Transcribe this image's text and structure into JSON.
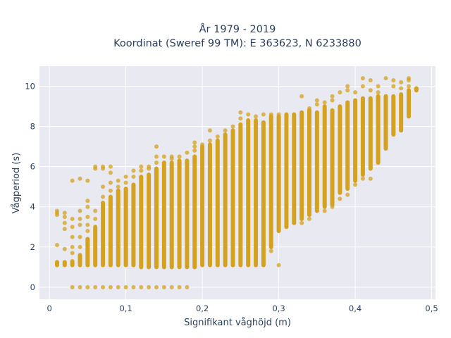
{
  "chart_data": {
    "type": "scatter",
    "title_line1": "År 1979 - 2019",
    "title_line2": "Koordinat (Sweref 99 TM): E 363623, N 6233880",
    "xlabel": "Signifikant våghöjd (m)",
    "ylabel": "Vågperiod (s)",
    "xlim": [
      -0.013,
      0.505
    ],
    "ylim": [
      -0.6,
      11.0
    ],
    "x_ticks": [
      0,
      0.1,
      0.2,
      0.3,
      0.4,
      0.5
    ],
    "x_tick_labels": [
      "0",
      "0,1",
      "0,2",
      "0,3",
      "0,4",
      "0,5"
    ],
    "y_ticks": [
      0,
      2,
      4,
      6,
      8,
      10
    ],
    "y_tick_labels": [
      "0",
      "2",
      "4",
      "6",
      "8",
      "10"
    ],
    "grid": true,
    "colors": {
      "marker": "#d4a21e",
      "plot_bg": "#e9e9f1",
      "grid": "#ffffff",
      "text": "#2a3f5f"
    },
    "series": [
      {
        "marker_size": 6,
        "columns": [
          {
            "x": 0.01,
            "ymin": 1.1,
            "ymax": 1.25,
            "out": [
              1.2,
              2.1,
              3.6,
              3.8,
              3.7
            ]
          },
          {
            "x": 0.02,
            "ymin": 1.1,
            "ymax": 1.25,
            "out": [
              1.2,
              1.9,
              2.9,
              3.2,
              3.5,
              3.7
            ]
          },
          {
            "x": 0.03,
            "ymin": 1.1,
            "ymax": 1.25,
            "out": [
              0,
              1.3,
              1.7,
              2.0,
              2.5,
              3.0,
              3.4,
              5.3
            ]
          },
          {
            "x": 0.04,
            "ymin": 1.1,
            "ymax": 1.6,
            "out": [
              0,
              2.0,
              2.5,
              3.1,
              3.4,
              3.8,
              5.4
            ]
          },
          {
            "x": 0.05,
            "ymin": 1.1,
            "ymax": 2.4,
            "out": [
              0,
              2.8,
              3.1,
              3.5,
              4.0,
              4.3,
              5.3
            ]
          },
          {
            "x": 0.06,
            "ymin": 1.1,
            "ymax": 3.0,
            "out": [
              0,
              3.4,
              3.8,
              5.9,
              6.0
            ]
          },
          {
            "x": 0.07,
            "ymin": 1.1,
            "ymax": 4.2,
            "out": [
              0,
              4.5,
              5.0,
              5.9,
              6.0
            ]
          },
          {
            "x": 0.08,
            "ymin": 1.1,
            "ymax": 4.5,
            "out": [
              0,
              4.8,
              5.2,
              5.7,
              6.0
            ]
          },
          {
            "x": 0.09,
            "ymin": 1.1,
            "ymax": 4.8,
            "out": [
              0,
              5.0,
              5.3
            ]
          },
          {
            "x": 0.1,
            "ymin": 1.1,
            "ymax": 4.9,
            "out": [
              0,
              5.2,
              5.5
            ]
          },
          {
            "x": 0.11,
            "ymin": 1.1,
            "ymax": 5.1,
            "out": [
              0,
              5.5,
              5.8
            ]
          },
          {
            "x": 0.12,
            "ymin": 1.0,
            "ymax": 5.5,
            "out": [
              0,
              5.8,
              6.0
            ]
          },
          {
            "x": 0.13,
            "ymin": 1.0,
            "ymax": 5.6,
            "out": [
              0,
              5.9,
              6.0
            ]
          },
          {
            "x": 0.14,
            "ymin": 1.0,
            "ymax": 5.9,
            "out": [
              0,
              6.2,
              6.5,
              7.0
            ]
          },
          {
            "x": 0.15,
            "ymin": 1.0,
            "ymax": 6.2,
            "out": [
              0,
              6.5
            ]
          },
          {
            "x": 0.16,
            "ymin": 1.0,
            "ymax": 6.2,
            "out": [
              0,
              6.4,
              6.5
            ]
          },
          {
            "x": 0.17,
            "ymin": 1.0,
            "ymax": 6.3,
            "out": [
              0,
              6.5
            ]
          },
          {
            "x": 0.18,
            "ymin": 1.0,
            "ymax": 6.3,
            "out": [
              0,
              6.7
            ]
          },
          {
            "x": 0.19,
            "ymin": 1.0,
            "ymax": 6.5,
            "out": [
              6.8,
              7.0,
              7.2
            ]
          },
          {
            "x": 0.2,
            "ymin": 1.1,
            "ymax": 7.0,
            "out": [
              7.1
            ]
          },
          {
            "x": 0.21,
            "ymin": 1.1,
            "ymax": 7.1,
            "out": [
              7.3,
              7.8
            ]
          },
          {
            "x": 0.22,
            "ymin": 1.1,
            "ymax": 7.3,
            "out": [
              7.5
            ]
          },
          {
            "x": 0.23,
            "ymin": 1.1,
            "ymax": 7.6,
            "out": [
              7.8
            ]
          },
          {
            "x": 0.24,
            "ymin": 1.1,
            "ymax": 7.8,
            "out": [
              8.0
            ]
          },
          {
            "x": 0.25,
            "ymin": 1.1,
            "ymax": 8.1,
            "out": [
              8.4,
              8.7
            ]
          },
          {
            "x": 0.26,
            "ymin": 1.1,
            "ymax": 8.3,
            "out": [
              1.3,
              1.6,
              8.6
            ]
          },
          {
            "x": 0.27,
            "ymin": 1.1,
            "ymax": 8.3,
            "out": [
              1.4,
              8.5
            ]
          },
          {
            "x": 0.28,
            "ymin": 1.1,
            "ymax": 8.2,
            "out": [
              1.6,
              1.8,
              8.6
            ]
          },
          {
            "x": 0.29,
            "ymin": 2.0,
            "ymax": 8.5,
            "out": [
              1.8,
              8.6
            ]
          },
          {
            "x": 0.3,
            "ymin": 2.8,
            "ymax": 8.5,
            "out": [
              1.1,
              8.6
            ]
          },
          {
            "x": 0.31,
            "ymin": 3.0,
            "ymax": 8.6,
            "out": []
          },
          {
            "x": 0.32,
            "ymin": 3.2,
            "ymax": 8.6,
            "out": []
          },
          {
            "x": 0.33,
            "ymin": 3.4,
            "ymax": 8.7,
            "out": [
              3.2,
              9.5
            ]
          },
          {
            "x": 0.34,
            "ymin": 3.6,
            "ymax": 8.8,
            "out": [
              3.4,
              8.9
            ]
          },
          {
            "x": 0.35,
            "ymin": 3.8,
            "ymax": 8.7,
            "out": [
              4.2,
              9.1,
              9.3
            ]
          },
          {
            "x": 0.36,
            "ymin": 4.0,
            "ymax": 9.0,
            "out": [
              3.8,
              4.5,
              9.2
            ]
          },
          {
            "x": 0.37,
            "ymin": 4.1,
            "ymax": 8.8,
            "out": [
              4.0,
              9.3,
              9.5
            ]
          },
          {
            "x": 0.38,
            "ymin": 4.7,
            "ymax": 9.0,
            "out": [
              4.4,
              9.7
            ]
          },
          {
            "x": 0.39,
            "ymin": 4.9,
            "ymax": 9.2,
            "out": [
              4.6,
              9.8,
              10.0
            ]
          },
          {
            "x": 0.4,
            "ymin": 5.3,
            "ymax": 9.3,
            "out": [
              5.1,
              9.7
            ]
          },
          {
            "x": 0.41,
            "ymin": 5.6,
            "ymax": 9.4,
            "out": [
              5.4,
              10.0,
              10.4
            ]
          },
          {
            "x": 0.42,
            "ymin": 5.9,
            "ymax": 9.4,
            "out": [
              5.4,
              9.8,
              10.3
            ]
          },
          {
            "x": 0.43,
            "ymin": 6.2,
            "ymax": 9.5,
            "out": [
              9.7,
              10.0
            ]
          },
          {
            "x": 0.44,
            "ymin": 6.9,
            "ymax": 9.5,
            "out": [
              10.4
            ]
          },
          {
            "x": 0.45,
            "ymin": 7.6,
            "ymax": 9.5,
            "out": [
              10.0,
              10.3
            ]
          },
          {
            "x": 0.46,
            "ymin": 7.8,
            "ymax": 9.6,
            "out": [
              9.9,
              10.2
            ]
          },
          {
            "x": 0.47,
            "ymin": 8.5,
            "ymax": 9.8,
            "out": [
              10.0,
              10.3,
              10.4
            ]
          },
          {
            "x": 0.48,
            "ymin": 9.8,
            "ymax": 9.9,
            "out": []
          }
        ]
      }
    ]
  }
}
